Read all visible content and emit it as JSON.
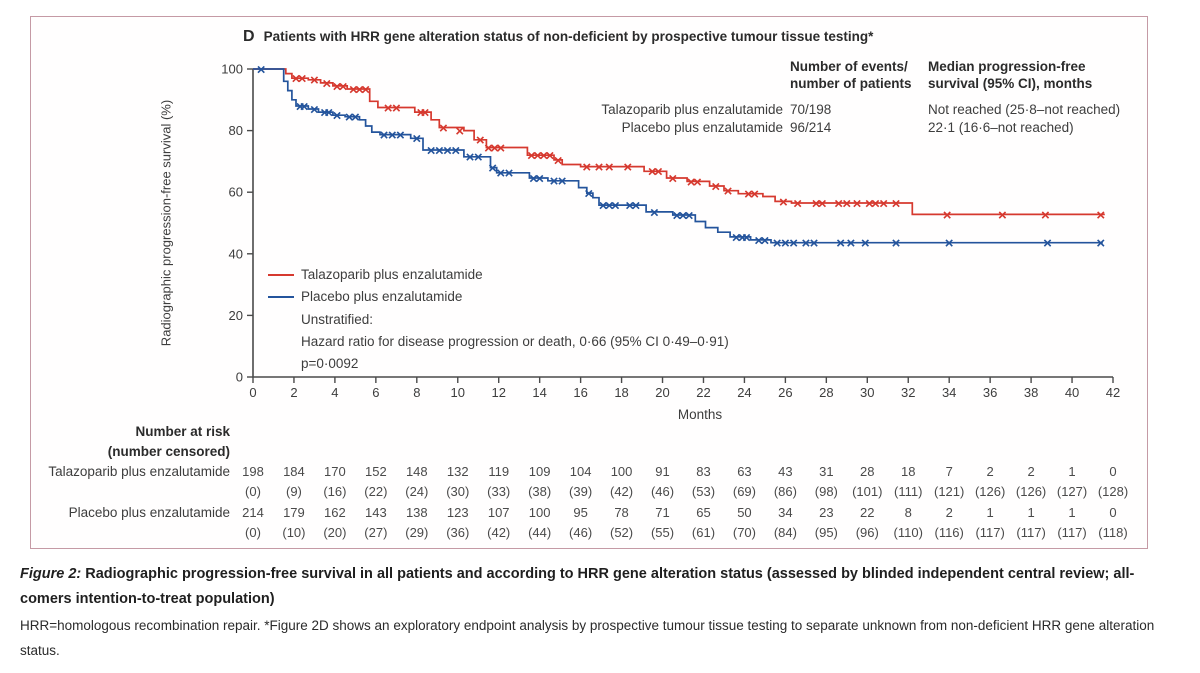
{
  "panel": {
    "label": "D",
    "title": "Patients with HRR gene alteration status of non-deficient by prospective tumour tissue testing*"
  },
  "stats": {
    "col1_header_line1": "Number of events/",
    "col1_header_line2": "number of patients",
    "col2_header_line1": "Median progression-free",
    "col2_header_line2": "survival (95% CI), months",
    "rows": [
      {
        "label": "Talazoparib plus enzalutamide",
        "events": "70/198",
        "median": "Not reached (25·8–not reached)"
      },
      {
        "label": "Placebo plus enzalutamide",
        "events": "96/214",
        "median": "22·1 (16·6–not reached)"
      }
    ]
  },
  "legend": {
    "entries": [
      {
        "label": "Talazoparib plus enzalutamide"
      },
      {
        "label": "Placebo plus enzalutamide"
      }
    ],
    "lines": [
      "Unstratified:",
      "Hazard ratio for disease progression or death, 0·66 (95% CI 0·49–0·91)",
      "p=0·0092"
    ]
  },
  "chart_data": {
    "type": "line",
    "subtype": "kaplan-meier-step",
    "xlabel": "Months",
    "ylabel": "Radiographic progression-free survival (%)",
    "xlim": [
      0,
      42
    ],
    "ylim": [
      0,
      100
    ],
    "x_ticks": [
      0,
      2,
      4,
      6,
      8,
      10,
      12,
      14,
      16,
      18,
      20,
      22,
      24,
      26,
      28,
      30,
      32,
      34,
      36,
      38,
      40,
      42
    ],
    "y_ticks": [
      0,
      20,
      40,
      60,
      80,
      100
    ],
    "grid": false,
    "legend_position": "inside-left",
    "series": [
      {
        "name": "Talazoparib plus enzalutamide",
        "color": "#d6392f",
        "steps": [
          [
            0,
            100
          ],
          [
            1.6,
            98.5
          ],
          [
            1.9,
            97
          ],
          [
            2.7,
            96.5
          ],
          [
            3.3,
            95.5
          ],
          [
            3.9,
            94.5
          ],
          [
            4.6,
            93.5
          ],
          [
            5.7,
            89.5
          ],
          [
            6.1,
            87.5
          ],
          [
            7.9,
            86
          ],
          [
            8.7,
            83.5
          ],
          [
            9.1,
            81
          ],
          [
            10.3,
            80
          ],
          [
            10.8,
            77
          ],
          [
            11.4,
            74.5
          ],
          [
            13.4,
            72
          ],
          [
            14.7,
            70.5
          ],
          [
            15.1,
            69
          ],
          [
            16.0,
            68.3
          ],
          [
            19.1,
            66.8
          ],
          [
            20.2,
            64.6
          ],
          [
            21.2,
            63.5
          ],
          [
            22.3,
            62
          ],
          [
            23.0,
            60.5
          ],
          [
            23.7,
            59.5
          ],
          [
            24.9,
            58.6
          ],
          [
            25.5,
            57
          ],
          [
            26.3,
            56.5
          ],
          [
            32.2,
            52.8
          ],
          [
            41.6,
            52.8
          ]
        ],
        "censors": [
          [
            2.1,
            97
          ],
          [
            2.4,
            97
          ],
          [
            3.0,
            96.5
          ],
          [
            3.6,
            95.5
          ],
          [
            4.1,
            94.5
          ],
          [
            4.4,
            94.5
          ],
          [
            4.9,
            93.5
          ],
          [
            5.2,
            93.5
          ],
          [
            5.5,
            93.5
          ],
          [
            6.6,
            87.5
          ],
          [
            7.0,
            87.5
          ],
          [
            8.2,
            86
          ],
          [
            8.4,
            86
          ],
          [
            9.3,
            81
          ],
          [
            10.1,
            80
          ],
          [
            11.1,
            77
          ],
          [
            11.5,
            74.5
          ],
          [
            11.8,
            74.5
          ],
          [
            12.1,
            74.5
          ],
          [
            13.6,
            72
          ],
          [
            13.9,
            72
          ],
          [
            14.2,
            72
          ],
          [
            14.5,
            72
          ],
          [
            14.9,
            70.5
          ],
          [
            16.3,
            68.3
          ],
          [
            16.9,
            68.3
          ],
          [
            17.4,
            68.3
          ],
          [
            18.3,
            68.3
          ],
          [
            19.5,
            66.8
          ],
          [
            19.8,
            66.8
          ],
          [
            20.5,
            64.6
          ],
          [
            21.4,
            63.5
          ],
          [
            21.7,
            63.5
          ],
          [
            22.6,
            62
          ],
          [
            23.2,
            60.5
          ],
          [
            24.2,
            59.5
          ],
          [
            24.5,
            59.5
          ],
          [
            25.9,
            57
          ],
          [
            26.6,
            56.5
          ],
          [
            27.5,
            56.5
          ],
          [
            27.8,
            56.5
          ],
          [
            28.6,
            56.5
          ],
          [
            29.0,
            56.5
          ],
          [
            29.5,
            56.5
          ],
          [
            30.1,
            56.5
          ],
          [
            30.4,
            56.5
          ],
          [
            30.8,
            56.5
          ],
          [
            31.4,
            56.5
          ],
          [
            33.9,
            52.8
          ],
          [
            36.6,
            52.8
          ],
          [
            38.7,
            52.8
          ],
          [
            41.4,
            52.8
          ]
        ]
      },
      {
        "name": "Placebo plus enzalutamide",
        "color": "#24549c",
        "steps": [
          [
            0,
            100
          ],
          [
            1.5,
            96
          ],
          [
            1.7,
            93
          ],
          [
            1.9,
            90
          ],
          [
            2.1,
            88
          ],
          [
            2.7,
            87
          ],
          [
            3.2,
            86
          ],
          [
            3.9,
            85
          ],
          [
            4.5,
            84.5
          ],
          [
            5.2,
            83.5
          ],
          [
            5.5,
            81.5
          ],
          [
            5.8,
            79.5
          ],
          [
            6.2,
            78.7
          ],
          [
            7.7,
            77.5
          ],
          [
            8.3,
            73.7
          ],
          [
            10.3,
            71.5
          ],
          [
            11.6,
            68
          ],
          [
            11.9,
            66.3
          ],
          [
            13.5,
            64.6
          ],
          [
            14.4,
            63.7
          ],
          [
            15.9,
            61.5
          ],
          [
            16.3,
            59.7
          ],
          [
            16.6,
            58.2
          ],
          [
            16.9,
            55.8
          ],
          [
            19.2,
            53.6
          ],
          [
            20.5,
            52.6
          ],
          [
            21.6,
            50.5
          ],
          [
            22.1,
            48.5
          ],
          [
            22.7,
            47
          ],
          [
            23.3,
            45.5
          ],
          [
            24.3,
            44.5
          ],
          [
            25.3,
            43.6
          ],
          [
            41.5,
            43.6
          ]
        ],
        "censors": [
          [
            0.4,
            100
          ],
          [
            2.3,
            88
          ],
          [
            2.5,
            88
          ],
          [
            3.0,
            87
          ],
          [
            3.5,
            86
          ],
          [
            3.7,
            86
          ],
          [
            4.1,
            85
          ],
          [
            4.7,
            84.5
          ],
          [
            5.0,
            84.5
          ],
          [
            6.4,
            78.7
          ],
          [
            6.8,
            78.7
          ],
          [
            7.2,
            78.7
          ],
          [
            8.0,
            77.5
          ],
          [
            8.7,
            73.7
          ],
          [
            9.1,
            73.7
          ],
          [
            9.5,
            73.7
          ],
          [
            9.9,
            73.7
          ],
          [
            10.6,
            71.5
          ],
          [
            11.0,
            71.5
          ],
          [
            11.7,
            68
          ],
          [
            12.1,
            66.3
          ],
          [
            12.5,
            66.3
          ],
          [
            13.7,
            64.6
          ],
          [
            14.0,
            64.6
          ],
          [
            14.7,
            63.7
          ],
          [
            15.1,
            63.7
          ],
          [
            16.4,
            59.7
          ],
          [
            17.1,
            55.8
          ],
          [
            17.4,
            55.8
          ],
          [
            17.7,
            55.8
          ],
          [
            18.4,
            55.8
          ],
          [
            18.7,
            55.8
          ],
          [
            19.6,
            53.6
          ],
          [
            20.7,
            52.6
          ],
          [
            21.0,
            52.6
          ],
          [
            21.3,
            52.6
          ],
          [
            23.6,
            45.5
          ],
          [
            23.9,
            45.5
          ],
          [
            24.1,
            45.5
          ],
          [
            24.7,
            44.5
          ],
          [
            25.0,
            44.5
          ],
          [
            25.6,
            43.6
          ],
          [
            26.0,
            43.6
          ],
          [
            26.4,
            43.6
          ],
          [
            27.0,
            43.6
          ],
          [
            27.4,
            43.6
          ],
          [
            28.7,
            43.6
          ],
          [
            29.2,
            43.6
          ],
          [
            29.9,
            43.6
          ],
          [
            31.4,
            43.6
          ],
          [
            34.0,
            43.6
          ],
          [
            38.8,
            43.6
          ],
          [
            41.4,
            43.6
          ]
        ]
      }
    ]
  },
  "risk_table": {
    "header_line1": "Number at risk",
    "header_line2": "(number censored)",
    "months": [
      0,
      2,
      4,
      6,
      8,
      10,
      12,
      14,
      16,
      18,
      20,
      22,
      24,
      26,
      28,
      30,
      32,
      34,
      36,
      38,
      40,
      42
    ],
    "rows": [
      {
        "label": "Talazoparib plus enzalutamide",
        "at_risk": [
          198,
          184,
          170,
          152,
          148,
          132,
          119,
          109,
          104,
          100,
          91,
          83,
          63,
          43,
          31,
          28,
          18,
          7,
          2,
          2,
          1,
          0
        ],
        "censored": [
          0,
          9,
          16,
          22,
          24,
          30,
          33,
          38,
          39,
          42,
          46,
          53,
          69,
          86,
          98,
          101,
          111,
          121,
          126,
          126,
          127,
          128
        ]
      },
      {
        "label": "Placebo plus enzalutamide",
        "at_risk": [
          214,
          179,
          162,
          143,
          138,
          123,
          107,
          100,
          95,
          78,
          71,
          65,
          50,
          34,
          23,
          22,
          8,
          2,
          1,
          1,
          1,
          0
        ],
        "censored": [
          0,
          10,
          20,
          27,
          29,
          36,
          42,
          44,
          46,
          52,
          55,
          61,
          70,
          84,
          95,
          96,
          110,
          116,
          117,
          117,
          117,
          118
        ]
      }
    ]
  },
  "caption": {
    "figure_label": "Figure 2:",
    "bold_text": " Radiographic progression-free survival in all patients and according to HRR gene alteration status (assessed by blinded independent central review; all-comers intention-to-treat population)",
    "note": "HRR=homologous recombination repair. *Figure 2D shows an exploratory endpoint analysis by prospective tumour tissue testing to separate unknown from non-deficient HRR gene alteration status."
  }
}
